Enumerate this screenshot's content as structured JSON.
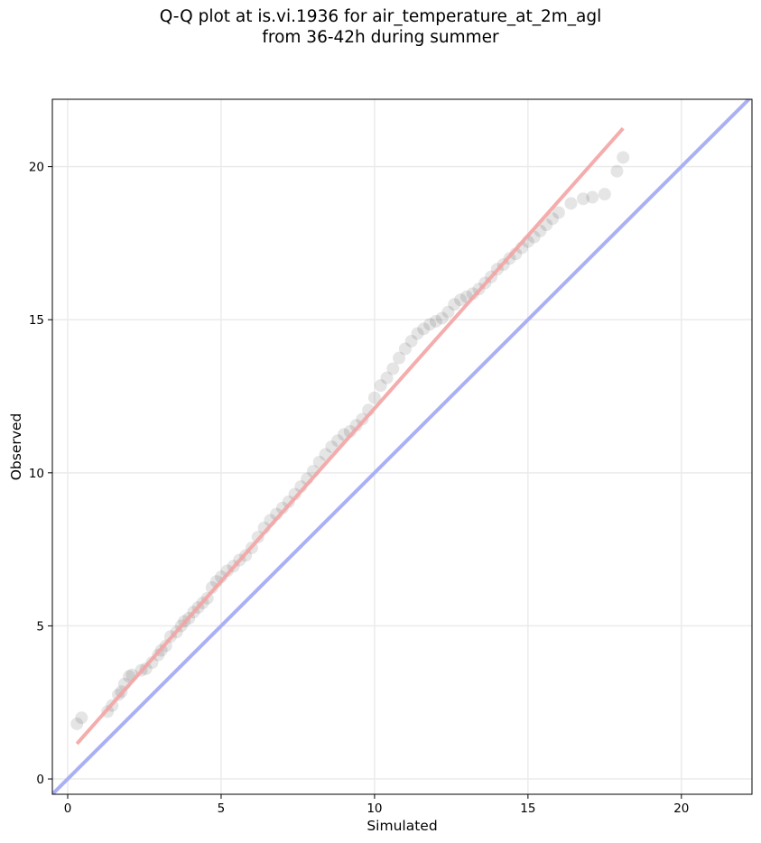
{
  "chart_data": {
    "type": "scatter",
    "title_lines": [
      "Q-Q plot at is.vi.1936 for air_temperature_at_2m_agl",
      "from 36-42h during summer"
    ],
    "xlabel": "Simulated",
    "ylabel": "Observed",
    "xlim": [
      -0.5,
      22.3
    ],
    "ylim": [
      -0.5,
      22.2
    ],
    "xticks": [
      0,
      5,
      10,
      15,
      20
    ],
    "yticks": [
      0,
      5,
      10,
      15,
      20
    ],
    "grid": true,
    "colors": {
      "points": "#000000",
      "fit_line": "#f4a3a3",
      "identity_line": "#aab0f5",
      "grid": "#ebebeb"
    },
    "fit_line": {
      "x": [
        0.3,
        18.1
      ],
      "y": [
        1.15,
        21.25
      ]
    },
    "identity_line": {
      "x": [
        -0.5,
        22.3
      ],
      "y": [
        -0.5,
        22.3
      ]
    },
    "points": {
      "x": [
        0.3,
        0.45,
        1.3,
        1.45,
        1.65,
        1.75,
        1.85,
        2.0,
        2.1,
        2.4,
        2.55,
        2.75,
        2.95,
        3.05,
        3.2,
        3.35,
        3.55,
        3.7,
        3.8,
        3.95,
        4.1,
        4.25,
        4.4,
        4.55,
        4.7,
        4.85,
        5.0,
        5.2,
        5.4,
        5.6,
        5.8,
        6.0,
        6.2,
        6.4,
        6.6,
        6.8,
        7.0,
        7.2,
        7.4,
        7.6,
        7.8,
        8.0,
        8.2,
        8.4,
        8.6,
        8.8,
        9.0,
        9.2,
        9.4,
        9.6,
        9.8,
        10.0,
        10.2,
        10.4,
        10.6,
        10.8,
        11.0,
        11.2,
        11.4,
        11.6,
        11.8,
        12.0,
        12.2,
        12.4,
        12.6,
        12.8,
        13.0,
        13.2,
        13.4,
        13.6,
        13.8,
        14.0,
        14.2,
        14.4,
        14.6,
        14.8,
        15.0,
        15.2,
        15.4,
        15.6,
        15.8,
        16.0,
        16.4,
        16.8,
        17.1,
        17.5,
        17.9,
        18.1
      ],
      "y": [
        1.8,
        2.0,
        2.2,
        2.4,
        2.75,
        2.85,
        3.1,
        3.35,
        3.4,
        3.55,
        3.6,
        3.8,
        4.05,
        4.2,
        4.35,
        4.65,
        4.8,
        5.0,
        5.15,
        5.25,
        5.45,
        5.6,
        5.75,
        5.9,
        6.25,
        6.45,
        6.6,
        6.8,
        6.95,
        7.15,
        7.3,
        7.55,
        7.9,
        8.2,
        8.45,
        8.65,
        8.85,
        9.05,
        9.3,
        9.55,
        9.8,
        10.05,
        10.35,
        10.6,
        10.85,
        11.05,
        11.25,
        11.35,
        11.55,
        11.75,
        12.05,
        12.45,
        12.85,
        13.1,
        13.4,
        13.75,
        14.05,
        14.3,
        14.55,
        14.7,
        14.85,
        14.95,
        15.05,
        15.25,
        15.5,
        15.65,
        15.75,
        15.85,
        16.0,
        16.2,
        16.4,
        16.65,
        16.8,
        17.0,
        17.15,
        17.35,
        17.55,
        17.7,
        17.9,
        18.1,
        18.3,
        18.5,
        18.8,
        18.95,
        19.0,
        19.1,
        19.85,
        20.3
      ]
    }
  }
}
